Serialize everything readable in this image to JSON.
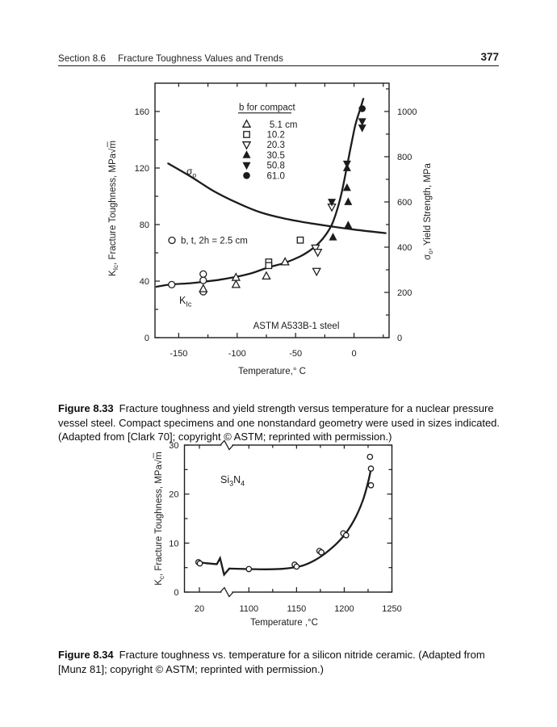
{
  "page": {
    "ink_color": "#1c1c1c",
    "header": {
      "section": "Section 8.6",
      "title": "Fracture Toughness Values and Trends",
      "page_number": "377"
    },
    "captions": {
      "fig1": {
        "label": "Figure 8.33",
        "text": "Fracture toughness and yield strength versus temperature for a nuclear pressure vessel steel. Compact specimens and one nonstandard geometry were used in sizes indicated. (Adapted from [Clark 70]; copyright © ASTM; reprinted with permission.)"
      },
      "fig2": {
        "label": "Figure 8.34",
        "text": "Fracture toughness vs. temperature for a silicon nitride ceramic. (Adapted from [Munz 81]; copyright © ASTM; reprinted with permission.)"
      }
    }
  },
  "chart_data": [
    {
      "id": "fig-8-33",
      "type": "scatter",
      "material_label": "ASTM A533B-1 steel",
      "x_axis": {
        "label_tokens": [
          [
            "Temperature,° C",
            ""
          ]
        ],
        "range": [
          -170.3,
          30
        ],
        "ticks": [
          -150,
          -100,
          -50,
          0
        ],
        "minor_ticks": [
          -125,
          -75,
          -25,
          25
        ],
        "top_ticks": [
          -150,
          -125,
          -100,
          -75,
          -50,
          -25,
          0,
          25
        ]
      },
      "y_left": {
        "label_tokens": [
          [
            "K",
            ""
          ],
          [
            "Ic",
            "sub"
          ],
          [
            ", Fracture Toughness, MPa",
            ""
          ],
          [
            "√",
            ""
          ],
          [
            "m",
            "ol"
          ]
        ],
        "range": [
          0,
          180
        ],
        "ticks": [
          0,
          40,
          80,
          120,
          160
        ],
        "minor_ticks": [
          20,
          60,
          100,
          140
        ]
      },
      "y_right": {
        "label_tokens": [
          [
            "σ",
            ""
          ],
          [
            "o",
            "sub"
          ],
          [
            ", Yield Strength, MPa",
            ""
          ]
        ],
        "range": [
          0,
          1125
        ],
        "ticks": [
          0,
          200,
          400,
          600,
          800,
          1000
        ],
        "minor_ticks": [
          100,
          300,
          500,
          700,
          900,
          1100
        ]
      },
      "legend": {
        "title": "b for compact",
        "items": [
          {
            "marker": "triangle-up-open",
            "label": "5.1 cm"
          },
          {
            "marker": "square-open",
            "label": "10.2"
          },
          {
            "marker": "triangle-down-open",
            "label": "20.3"
          },
          {
            "marker": "triangle-up-filled",
            "label": "30.5"
          },
          {
            "marker": "triangle-down-filled",
            "label": "50.8"
          },
          {
            "marker": "circle-filled",
            "label": "61.0"
          }
        ]
      },
      "note": {
        "marker": "circle-open",
        "text": "b, t, 2h = 2.5 cm"
      },
      "series": [
        {
          "name": "b, t, 2h = 2.5 cm nonstandard",
          "marker": "circle-open",
          "axis": "left",
          "points": [
            [
              -156,
              37.5
            ],
            [
              -129,
              45
            ],
            [
              -129,
              40.5
            ],
            [
              -129,
              32.5
            ]
          ]
        },
        {
          "name": "b = 5.1 cm compact",
          "marker": "triangle-up-open",
          "axis": "left",
          "points": [
            [
              -129,
              34.5
            ],
            [
              -101,
              42.5
            ],
            [
              -101,
              37.5
            ],
            [
              -75,
              43.5
            ],
            [
              -59,
              53.5
            ]
          ]
        },
        {
          "name": "b = 10.2 cm compact",
          "marker": "square-open",
          "axis": "left",
          "points": [
            [
              -73,
              53.5
            ],
            [
              -73,
              51
            ],
            [
              -46,
              69
            ]
          ]
        },
        {
          "name": "b = 20.3 cm compact",
          "marker": "triangle-down-open",
          "axis": "left",
          "points": [
            [
              -33,
              63.5
            ],
            [
              -31,
              60.5
            ],
            [
              -32,
              47
            ],
            [
              -19,
              92.5
            ]
          ]
        },
        {
          "name": "b = 30.5 cm compact",
          "marker": "triangle-up-filled",
          "axis": "left",
          "points": [
            [
              -18,
              71
            ],
            [
              -5,
              79.5
            ],
            [
              -5,
              96
            ],
            [
              -6,
              106
            ],
            [
              -6,
              120
            ]
          ]
        },
        {
          "name": "b = 50.8 cm compact",
          "marker": "triangle-down-filled",
          "axis": "left",
          "points": [
            [
              -19,
              96
            ],
            [
              -6,
              123
            ],
            [
              7,
              153
            ],
            [
              7,
              148.5
            ]
          ]
        },
        {
          "name": "b = 61.0 cm compact",
          "marker": "circle-filled",
          "axis": "left",
          "points": [
            [
              7,
              162
            ]
          ]
        }
      ],
      "curves": [
        {
          "name": "KIc-trend",
          "axis": "left",
          "label_tokens": [
            [
              "K",
              ""
            ],
            [
              "Ic",
              "sub"
            ]
          ],
          "points": [
            [
              -169,
              36
            ],
            [
              -158,
              37.5
            ],
            [
              -140,
              38.5
            ],
            [
              -129,
              39.5
            ],
            [
              -115,
              41
            ],
            [
              -101,
              43
            ],
            [
              -88,
              45.5
            ],
            [
              -74,
              49.5
            ],
            [
              -59,
              53
            ],
            [
              -46,
              57.5
            ],
            [
              -38,
              61.5
            ],
            [
              -30,
              67
            ],
            [
              -24,
              73
            ],
            [
              -19,
              80
            ],
            [
              -15,
              89
            ],
            [
              -11,
              101
            ],
            [
              -7,
              117
            ],
            [
              -3,
              134
            ],
            [
              1,
              150
            ],
            [
              5,
              161
            ],
            [
              8,
              169
            ]
          ]
        },
        {
          "name": "sigma-o-trend",
          "axis": "right",
          "label_tokens": [
            [
              "σ",
              ""
            ],
            [
              "o",
              "sub"
            ]
          ],
          "points": [
            [
              -159,
              770
            ],
            [
              -140,
              713
            ],
            [
              -120,
              648
            ],
            [
              -100,
              596
            ],
            [
              -80,
              554
            ],
            [
              -60,
              527
            ],
            [
              -40,
              508
            ],
            [
              -20,
              492
            ],
            [
              0,
              478
            ],
            [
              27,
              462
            ]
          ]
        }
      ]
    },
    {
      "id": "fig-8-34",
      "type": "scatter",
      "material_tokens": [
        [
          "Si",
          ""
        ],
        [
          "3",
          "sub"
        ],
        [
          "N",
          ""
        ],
        [
          "4",
          "sub"
        ]
      ],
      "x_axis": {
        "label_tokens": [
          [
            "Temperature ,°C",
            ""
          ]
        ],
        "ticks": [
          20,
          1100,
          1150,
          1200,
          1250
        ],
        "minor_ticks": [
          1125,
          1175,
          1225
        ],
        "break_between": [
          20,
          1100
        ],
        "break_frac": 0.204,
        "map": [
          [
            0,
            0.04
          ],
          [
            20,
            0.072
          ],
          [
            62,
            0.165
          ],
          [
            1086,
            0.216
          ],
          [
            1100,
            0.3105
          ],
          [
            1250,
            1.0
          ]
        ]
      },
      "y_axis": {
        "label_tokens": [
          [
            "K",
            ""
          ],
          [
            "c",
            "sub"
          ],
          [
            ", Fracture Toughness, MPa",
            ""
          ],
          [
            "√",
            ""
          ],
          [
            "m",
            "ol"
          ]
        ],
        "range": [
          0,
          30
        ],
        "ticks": [
          0,
          10,
          20,
          30
        ],
        "minor_ticks": [
          5,
          15,
          25
        ]
      },
      "series": [
        {
          "name": "Si3N4 Kc data",
          "marker": "circle-open-sm",
          "points": [
            [
              17,
              6.1
            ],
            [
              21,
              5.85
            ],
            [
              1100,
              4.7
            ],
            [
              1148,
              5.6
            ],
            [
              1150,
              5.2
            ],
            [
              1174,
              8.4
            ],
            [
              1176,
              8.1
            ],
            [
              1199,
              12.0
            ],
            [
              1202,
              11.6
            ],
            [
              1227,
              27.6
            ],
            [
              1228,
              25.2
            ],
            [
              1228,
              21.8
            ]
          ]
        }
      ],
      "curves": [
        {
          "name": "Kc-trend-pre-break",
          "points": [
            [
              14,
              6.15
            ],
            [
              35,
              5.9
            ],
            [
              58,
              5.7
            ]
          ]
        },
        {
          "name": "Kc-trend-post-break",
          "points": [
            [
              1086,
              4.8
            ],
            [
              1100,
              4.7
            ],
            [
              1118,
              4.65
            ],
            [
              1135,
              4.75
            ],
            [
              1148,
              5.05
            ],
            [
              1158,
              5.5
            ],
            [
              1170,
              6.6
            ],
            [
              1180,
              7.9
            ],
            [
              1192,
              9.9
            ],
            [
              1202,
              12.1
            ],
            [
              1212,
              15.3
            ],
            [
              1220,
              19.0
            ],
            [
              1226,
              23.2
            ],
            [
              1228,
              25.2
            ]
          ]
        }
      ]
    }
  ]
}
